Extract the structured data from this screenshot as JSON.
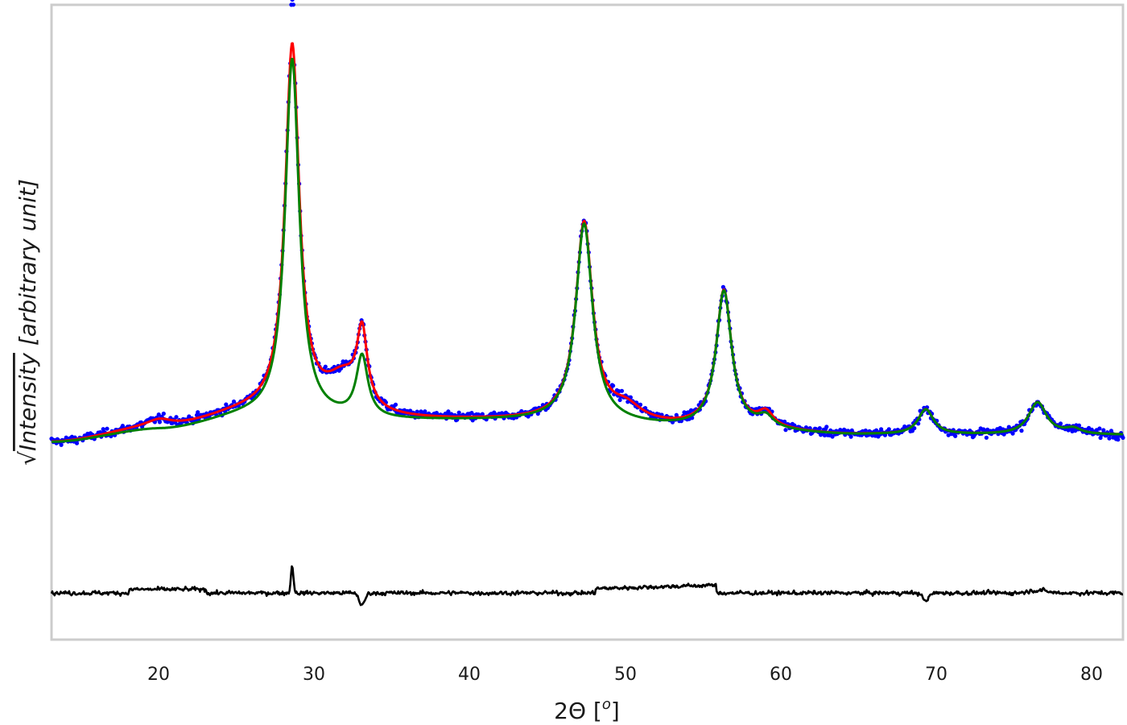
{
  "chart_data": {
    "type": "scatter",
    "title": "",
    "xlabel": "2Θ [°]",
    "ylabel": "√Intensity [arbitrary unit]",
    "xlim": [
      13,
      82
    ],
    "ylim": [
      -0.55,
      1.22
    ],
    "y_ticks_shown": false,
    "grid": false,
    "legend": null,
    "x_ticks": [
      20,
      30,
      40,
      50,
      60,
      70,
      80
    ],
    "colors": {
      "observed": "#0000ff",
      "fit_total": "#ff0000",
      "fit_model": "#008000",
      "residual": "#000000",
      "frame": "#cccccc"
    },
    "series": [
      {
        "name": "observed (data points)",
        "style": "scatter",
        "color": "#0000ff",
        "note": "noisy points following the red fit; max data point ≈ 1.18 at 2Θ≈28.5"
      },
      {
        "name": "fit (red)",
        "style": "line",
        "color": "#ff0000",
        "baseline": [
          [
            13,
            0.0
          ],
          [
            20,
            0.04
          ],
          [
            26,
            0.08
          ],
          [
            35,
            0.06
          ],
          [
            45,
            0.06
          ],
          [
            55,
            0.04
          ],
          [
            65,
            0.02
          ],
          [
            75,
            0.02
          ],
          [
            82,
            0.02
          ]
        ],
        "peaks": [
          {
            "pos": 20.0,
            "height": 0.02,
            "width": 1.0
          },
          {
            "pos": 28.5,
            "height": 1.02,
            "width": 0.55
          },
          {
            "pos": 31.8,
            "height": 0.1,
            "width": 1.4
          },
          {
            "pos": 33.0,
            "height": 0.2,
            "width": 0.4
          },
          {
            "pos": 47.3,
            "height": 0.55,
            "width": 0.65
          },
          {
            "pos": 50.0,
            "height": 0.04,
            "width": 1.2
          },
          {
            "pos": 56.3,
            "height": 0.38,
            "width": 0.6
          },
          {
            "pos": 59.0,
            "height": 0.04,
            "width": 0.6
          },
          {
            "pos": 69.3,
            "height": 0.07,
            "width": 0.6
          },
          {
            "pos": 76.5,
            "height": 0.09,
            "width": 0.7
          },
          {
            "pos": 78.8,
            "height": 0.015,
            "width": 0.6
          }
        ]
      },
      {
        "name": "model (green)",
        "style": "line",
        "color": "#008000",
        "baseline": [
          [
            13,
            0.0
          ],
          [
            20,
            0.035
          ],
          [
            26,
            0.07
          ],
          [
            35,
            0.06
          ],
          [
            45,
            0.06
          ],
          [
            55,
            0.04
          ],
          [
            65,
            0.02
          ],
          [
            75,
            0.02
          ],
          [
            82,
            0.02
          ]
        ],
        "peaks": [
          {
            "pos": 28.5,
            "height": 1.0,
            "width": 0.55
          },
          {
            "pos": 33.0,
            "height": 0.17,
            "width": 0.45
          },
          {
            "pos": 47.3,
            "height": 0.55,
            "width": 0.65
          },
          {
            "pos": 56.3,
            "height": 0.38,
            "width": 0.6
          },
          {
            "pos": 59.0,
            "height": 0.03,
            "width": 0.6
          },
          {
            "pos": 69.3,
            "height": 0.07,
            "width": 0.6
          },
          {
            "pos": 76.5,
            "height": 0.09,
            "width": 0.7
          },
          {
            "pos": 78.8,
            "height": 0.015,
            "width": 0.6
          }
        ]
      },
      {
        "name": "residual (black, offset)",
        "style": "line",
        "color": "#000000",
        "offset": -0.42,
        "features": [
          {
            "pos": 28.5,
            "amp": 0.07,
            "note": "sharp positive spike"
          },
          {
            "pos": 33.0,
            "amp": -0.04,
            "note": "dip"
          },
          {
            "pos": 49.0,
            "amp": 0.02,
            "note": "broad hump 48-55.5"
          },
          {
            "pos": 55.5,
            "amp": 0.03,
            "note": "step down after"
          },
          {
            "pos": 69.3,
            "amp": -0.03,
            "note": "small dip"
          }
        ]
      }
    ]
  },
  "axes": {
    "xlabel_main": "2Θ [",
    "xlabel_sup": "o",
    "xlabel_end": "]",
    "ylabel_radical": "√",
    "ylabel_text": "Intensity",
    "ylabel_units": " [arbitrary unit]",
    "x_tick_labels": [
      "20",
      "30",
      "40",
      "50",
      "60",
      "70",
      "80"
    ]
  }
}
